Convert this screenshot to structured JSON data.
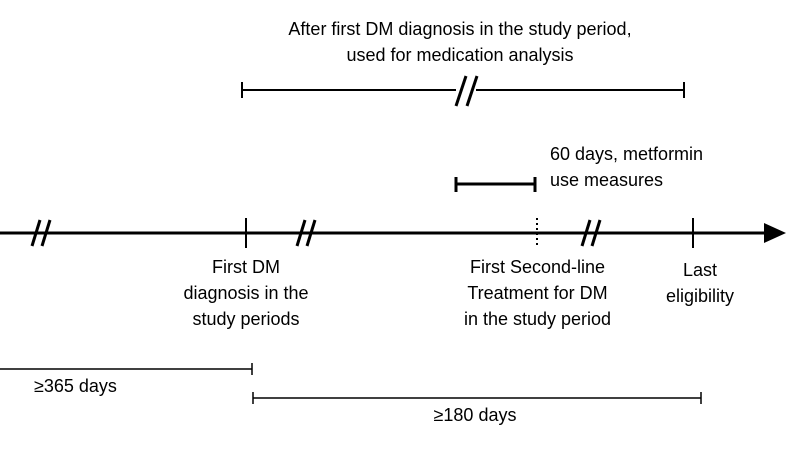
{
  "medication_window": {
    "label_lines": [
      "After first DM diagnosis in the study period,",
      "used for medication analysis"
    ]
  },
  "metformin_window": {
    "label_lines": [
      "60 days, metformin",
      "use measures"
    ]
  },
  "events": {
    "first_dm": {
      "label_lines": [
        "First DM",
        "diagnosis in the",
        "study periods"
      ]
    },
    "second_line": {
      "label_lines": [
        "First Second-line",
        "Treatment for DM",
        "in the study period"
      ]
    },
    "last_eligibility": {
      "label_lines": [
        "Last",
        "eligibility"
      ]
    }
  },
  "durations": {
    "lookback": {
      "label": "≥365 days"
    },
    "followup": {
      "label": "≥180 days"
    }
  },
  "colors": {
    "line": "#000000",
    "background": "#ffffff"
  }
}
